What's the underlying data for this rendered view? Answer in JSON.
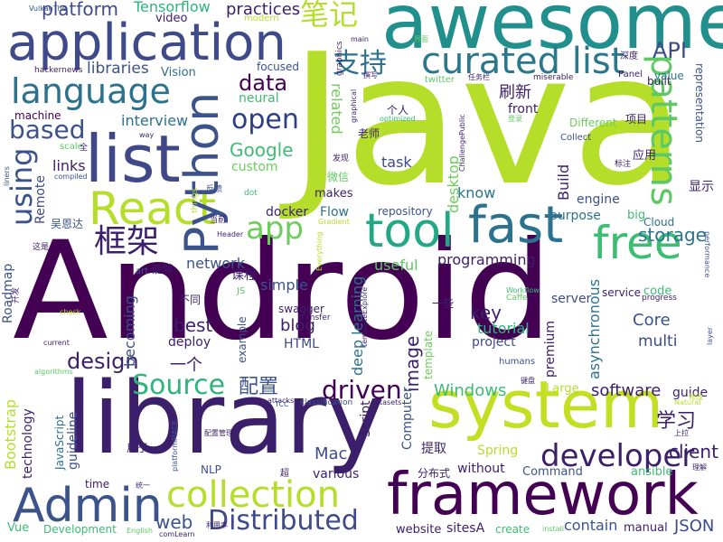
{
  "words": [
    {
      "text": "Android",
      "color": "#440154"
    },
    {
      "text": "Java",
      "color": "#b5de2b"
    },
    {
      "text": "library",
      "color": "#3b1f6b"
    },
    {
      "text": "awesome",
      "color": "#21908c"
    },
    {
      "text": "application",
      "color": "#3e4a89"
    },
    {
      "text": "system",
      "color": "#c2df23"
    },
    {
      "text": "framework",
      "color": "#440154"
    },
    {
      "text": "list",
      "color": "#3f4889"
    },
    {
      "text": "tool",
      "color": "#22a884"
    },
    {
      "text": "React",
      "color": "#b5de2b"
    },
    {
      "text": "Python",
      "color": "#3b528b"
    },
    {
      "text": "fast",
      "color": "#2c728e"
    },
    {
      "text": "free",
      "color": "#3dbc74"
    },
    {
      "text": "Admin",
      "color": "#3b528b"
    },
    {
      "text": "collection",
      "color": "#b5de2b"
    },
    {
      "text": "curated list",
      "color": "#2a788e"
    },
    {
      "text": "language",
      "color": "#2c728e"
    },
    {
      "text": "patterns",
      "color": "#5ec962"
    },
    {
      "text": "developer",
      "color": "#3b1f6b"
    },
    {
      "text": "Distributed",
      "color": "#3e4a89"
    },
    {
      "text": "app",
      "color": "#6ccd5a"
    },
    {
      "text": "框架",
      "color": "#3b1f6b"
    },
    {
      "text": "Source",
      "color": "#2fb47c"
    },
    {
      "text": "using",
      "color": "#3b528b"
    },
    {
      "text": "open",
      "color": "#2c3e85"
    },
    {
      "text": "data",
      "color": "#440154"
    },
    {
      "text": "based",
      "color": "#3b528b"
    },
    {
      "text": "driven",
      "color": "#440154"
    },
    {
      "text": "design",
      "color": "#3b1f6b"
    },
    {
      "text": "Google",
      "color": "#3dbc74"
    },
    {
      "text": "API",
      "color": "#3e4a89"
    },
    {
      "text": "笔记",
      "color": "#b5de2b"
    },
    {
      "text": "支持",
      "color": "#2c728e"
    },
    {
      "text": "platform",
      "color": "#3e4a89"
    },
    {
      "text": "practices",
      "color": "#3b1f6b"
    },
    {
      "text": "Tensorflow",
      "color": "#2fb47c"
    },
    {
      "text": "libraries",
      "color": "#3b528b"
    },
    {
      "text": "video",
      "color": "#3b1f6b"
    },
    {
      "text": "Vision",
      "color": "#2c728e"
    },
    {
      "text": "学习",
      "color": "#3b1f6b"
    },
    {
      "text": "配置",
      "color": "#3b528b"
    },
    {
      "text": "一个",
      "color": "#3b1f6b"
    },
    {
      "text": "web",
      "color": "#3b528b"
    },
    {
      "text": "software",
      "color": "#3b1f6b"
    },
    {
      "text": "Windows",
      "color": "#3dbc74"
    },
    {
      "text": "client",
      "color": "#3b1f6b"
    },
    {
      "text": "JSON",
      "color": "#3e4a89"
    },
    {
      "text": "Mac",
      "color": "#3e4a89"
    },
    {
      "text": "blog",
      "color": "#3b1f6b"
    },
    {
      "text": "HTML",
      "color": "#3e4a89"
    },
    {
      "text": "best",
      "color": "#3b1f6b"
    },
    {
      "text": "deploy",
      "color": "#3b1f6b"
    },
    {
      "text": "key",
      "color": "#3b1f6b"
    },
    {
      "text": "tutorial",
      "color": "#2fb47c"
    },
    {
      "text": "project",
      "color": "#3e4a89"
    },
    {
      "text": "Core",
      "color": "#3b528b"
    },
    {
      "text": "multi",
      "color": "#3e4a89"
    },
    {
      "text": "network",
      "color": "#3b528b"
    },
    {
      "text": "programming",
      "color": "#3b1f6b"
    },
    {
      "text": "simple",
      "color": "#3b528b"
    },
    {
      "text": "useful",
      "color": "#5ec962"
    },
    {
      "text": "storage",
      "color": "#2c728e"
    },
    {
      "text": "Build",
      "color": "#3b1f6b"
    },
    {
      "text": "engine",
      "color": "#3b528b"
    },
    {
      "text": "purpose",
      "color": "#2c728e"
    },
    {
      "text": "docker",
      "color": "#3b1f6b"
    },
    {
      "text": "Flow",
      "color": "#2c728e"
    },
    {
      "text": "makes",
      "color": "#3b1f6b"
    },
    {
      "text": "repository",
      "color": "#3b528b"
    },
    {
      "text": "know",
      "color": "#2c728e"
    },
    {
      "text": "task",
      "color": "#3e4a89"
    },
    {
      "text": "interview",
      "color": "#2c728e"
    },
    {
      "text": "machine",
      "color": "#440154"
    },
    {
      "text": "links",
      "color": "#3b1f6b"
    },
    {
      "text": "Remote",
      "color": "#3e4a89"
    },
    {
      "text": "custom",
      "color": "#6ccd5a"
    },
    {
      "text": "neural",
      "color": "#3dbc74"
    },
    {
      "text": "focused",
      "color": "#3b528b"
    },
    {
      "text": "related",
      "color": "#6ccd5a"
    },
    {
      "text": "desktop",
      "color": "#6ccd5a"
    },
    {
      "text": "front",
      "color": "#3b1f6b"
    },
    {
      "text": "刷新",
      "color": "#3b1f6b"
    },
    {
      "text": "Different",
      "color": "#6ccd5a"
    },
    {
      "text": "项目",
      "color": "#3b1f6b"
    },
    {
      "text": "representation",
      "color": "#3b528b"
    },
    {
      "text": "built",
      "color": "#3b1f6b"
    },
    {
      "text": "value",
      "color": "#2c728e"
    },
    {
      "text": "显示",
      "color": "#3b1f6b"
    },
    {
      "text": "应用",
      "color": "#3b1f6b"
    },
    {
      "text": "big",
      "color": "#3dbc74"
    },
    {
      "text": "Cloud",
      "color": "#2c728e"
    },
    {
      "text": "service",
      "color": "#3b1f6b"
    },
    {
      "text": "code",
      "color": "#3dbc74"
    },
    {
      "text": "server",
      "color": "#3e4a89"
    },
    {
      "text": "premium",
      "color": "#3b1f6b"
    },
    {
      "text": "asynchronous",
      "color": "#2c728e"
    },
    {
      "text": "guide",
      "color": "#3b1f6b"
    },
    {
      "text": "Large",
      "color": "#b5de2b"
    },
    {
      "text": "image",
      "color": "#3b1f6b"
    },
    {
      "text": "deep learning",
      "color": "#2c728e"
    },
    {
      "text": "template",
      "color": "#6ccd5a"
    },
    {
      "text": "Computer",
      "color": "#3b528b"
    },
    {
      "text": "Script",
      "color": "#3b1f6b"
    },
    {
      "text": "提取",
      "color": "#3b1f6b"
    },
    {
      "text": "分布式",
      "color": "#3b1f6b"
    },
    {
      "text": "without",
      "color": "#3b1f6b"
    },
    {
      "text": "Spring",
      "color": "#b5de2b"
    },
    {
      "text": "Command",
      "color": "#3b528b"
    },
    {
      "text": "ansible",
      "color": "#3dbc74"
    },
    {
      "text": "contain",
      "color": "#3b528b"
    },
    {
      "text": "manual",
      "color": "#3b1f6b"
    },
    {
      "text": "create",
      "color": "#3dbc74"
    },
    {
      "text": "sitesA",
      "color": "#3b1f6b"
    },
    {
      "text": "website",
      "color": "#3b1f6b"
    },
    {
      "text": "various",
      "color": "#3b1f6b"
    },
    {
      "text": "NLP",
      "color": "#3b528b"
    },
    {
      "text": "time",
      "color": "#3b1f6b"
    },
    {
      "text": "Development",
      "color": "#3dbc74"
    },
    {
      "text": "Vue",
      "color": "#3dbc74"
    },
    {
      "text": "Bootstrap",
      "color": "#b5de2b"
    },
    {
      "text": "technology",
      "color": "#3b1f6b"
    },
    {
      "text": "JavaScript",
      "color": "#2c728e"
    },
    {
      "text": "guideline",
      "color": "#3b528b"
    },
    {
      "text": "Roadmap",
      "color": "#3b528b"
    },
    {
      "text": "becoming",
      "color": "#3b528b"
    },
    {
      "text": "example",
      "color": "#3b528b"
    },
    {
      "text": "swagger",
      "color": "#3b1f6b"
    },
    {
      "text": "课程",
      "color": "#3b1f6b"
    },
    {
      "text": "能够",
      "color": "#3b1f6b"
    },
    {
      "text": "不同",
      "color": "#3b1f6b"
    },
    {
      "text": "吴恩达",
      "color": "#3b528b"
    },
    {
      "text": "微信",
      "color": "#5ec962"
    },
    {
      "text": "个人",
      "color": "#3b1f6b"
    },
    {
      "text": "老师",
      "color": "#3b1f6b"
    },
    {
      "text": "一些",
      "color": "#3b1f6b"
    },
    {
      "text": "用于",
      "color": "#3b1f6b"
    },
    {
      "text": "VulkanThe",
      "color": "#3b528b"
    },
    {
      "text": "hackernews",
      "color": "#3b1f6b"
    },
    {
      "text": "twitter",
      "color": "#5ec962"
    },
    {
      "text": "miserable",
      "color": "#3b1f6b"
    },
    {
      "text": "Panel",
      "color": "#3b1f6b"
    },
    {
      "text": "深度",
      "color": "#3b1f6b"
    },
    {
      "text": "modern",
      "color": "#b5de2b"
    },
    {
      "text": "graphics",
      "color": "#3b1f6b"
    },
    {
      "text": "main",
      "color": "#3b1f6b"
    },
    {
      "text": "optimized",
      "color": "#3dbc74"
    },
    {
      "text": "Collect",
      "color": "#3b528b"
    },
    {
      "text": "标注",
      "color": "#3b1f6b"
    },
    {
      "text": "progress",
      "color": "#3b1f6b"
    },
    {
      "text": "Caffe",
      "color": "#5ec962"
    },
    {
      "text": "Workflow",
      "color": "#3dbc74"
    },
    {
      "text": "transfer",
      "color": "#3b1f6b"
    },
    {
      "text": "humans",
      "color": "#3b528b"
    },
    {
      "text": "classification",
      "color": "#3b528b"
    },
    {
      "text": "datasets",
      "color": "#3b1f6b"
    },
    {
      "text": "attacks",
      "color": "#3b1f6b"
    },
    {
      "text": "Everything",
      "color": "#b5de2b"
    },
    {
      "text": "Gradient",
      "color": "#b5de2b"
    },
    {
      "text": "things",
      "color": "#b5de2b"
    },
    {
      "text": "dot",
      "color": "#3dbc74"
    },
    {
      "text": "Header",
      "color": "#3b1f6b"
    },
    {
      "text": "art",
      "color": "#3b528b"
    },
    {
      "text": "JS",
      "color": "#5ec962"
    },
    {
      "text": "check",
      "color": "#b5de2b"
    },
    {
      "text": "current",
      "color": "#3b1f6b"
    },
    {
      "text": "algorithms",
      "color": "#5ec962"
    },
    {
      "text": "scale",
      "color": "#5ec962"
    },
    {
      "text": "compiled",
      "color": "#3b528b"
    },
    {
      "text": "liners",
      "color": "#3b528b"
    },
    {
      "text": "way",
      "color": "#3b1f6b"
    },
    {
      "text": "performance",
      "color": "#3b528b"
    },
    {
      "text": "layer",
      "color": "#3b528b"
    },
    {
      "text": "这是",
      "color": "#3b1f6b"
    },
    {
      "text": "开发",
      "color": "#3b1f6b"
    },
    {
      "text": "当前",
      "color": "#3b1f6b"
    },
    {
      "text": "反馈",
      "color": "#3b528b"
    },
    {
      "text": "发现",
      "color": "#3b1f6b"
    },
    {
      "text": "任务栏",
      "color": "#3b1f6b"
    },
    {
      "text": "ChallengePublic",
      "color": "#3b1f6b"
    },
    {
      "text": "templateExplore",
      "color": "#3b1f6b"
    },
    {
      "text": "键盘",
      "color": "#3b1f6b"
    },
    {
      "text": "上拉",
      "color": "#3b1f6b"
    },
    {
      "text": "理解",
      "color": "#3b1f6b"
    },
    {
      "text": "Natural",
      "color": "#b5de2b"
    },
    {
      "text": "install",
      "color": "#5ec962"
    },
    {
      "text": "English",
      "color": "#5ec962"
    },
    {
      "text": "comLearn",
      "color": "#3b1f6b"
    },
    {
      "text": "利用率",
      "color": "#3b1f6b"
    },
    {
      "text": "统一",
      "color": "#3b1f6b"
    },
    {
      "text": "platformMACE",
      "color": "#3b528b"
    },
    {
      "text": "配置管理",
      "color": "#3b1f6b"
    },
    {
      "text": "TCC",
      "color": "#3b528b"
    },
    {
      "text": "graphical",
      "color": "#3b1f6b"
    },
    {
      "text": "登录",
      "color": "#5ec962"
    },
    {
      "text": "撰写",
      "color": "#3b1f6b"
    },
    {
      "text": "全",
      "color": "#3b1f6b"
    },
    {
      "text": "界面",
      "color": "#5ec962"
    },
    {
      "text": "修改",
      "color": "#b5de2b"
    },
    {
      "text": "超",
      "color": "#3b1f6b"
    }
  ]
}
